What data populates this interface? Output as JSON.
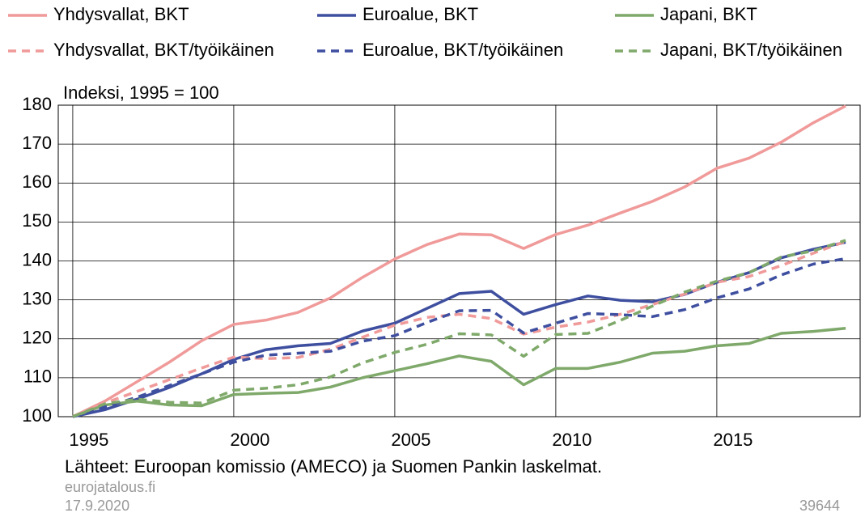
{
  "chart_data": {
    "type": "line",
    "y_label": "Indeksi, 1995 = 100",
    "source": "Lähteet: Euroopan komissio (AMECO) ja Suomen Pankin laskelmat.",
    "footer": [
      "eurojatalous.fi",
      "17.9.2020"
    ],
    "code": "39644",
    "x": [
      1995,
      1996,
      1997,
      1998,
      1999,
      2000,
      2001,
      2002,
      2003,
      2004,
      2005,
      2006,
      2007,
      2008,
      2009,
      2010,
      2011,
      2012,
      2013,
      2014,
      2015,
      2016,
      2017,
      2018,
      2019
    ],
    "xlim": [
      1994.55,
      2019.45
    ],
    "xticks": [
      1995,
      2000,
      2005,
      2010,
      2015
    ],
    "ylim": [
      100,
      180
    ],
    "yticks": [
      100,
      110,
      120,
      130,
      140,
      150,
      160,
      170,
      180
    ],
    "grid": true,
    "series": [
      {
        "name": "Yhdysvallat, BKT",
        "color": "#f09a9a",
        "linestyle": "solid",
        "values": [
          100,
          104,
          109,
          114,
          119.5,
          123.7,
          124.8,
          126.8,
          130.5,
          135.8,
          140.5,
          144.2,
          146.9,
          146.7,
          143.2,
          146.8,
          149.2,
          152.3,
          155.3,
          159,
          163.8,
          166.4,
          170.5,
          175.5,
          179.8
        ]
      },
      {
        "name": "Euroalue, BKT",
        "color": "#3f4fa0",
        "linestyle": "solid",
        "values": [
          100,
          101.8,
          104.5,
          107.5,
          111,
          114.7,
          117.2,
          118.2,
          118.8,
          122,
          124,
          127.8,
          131.6,
          132.2,
          126.3,
          128.8,
          131,
          129.9,
          129.5,
          131.4,
          134.5,
          137,
          140.8,
          143,
          144.8
        ]
      },
      {
        "name": "Japani, BKT",
        "color": "#7fa96a",
        "linestyle": "solid",
        "values": [
          100,
          103,
          104,
          103,
          102.8,
          105.7,
          106,
          106.2,
          107.6,
          110,
          111.8,
          113.6,
          115.6,
          114.2,
          108.2,
          112.4,
          112.4,
          114,
          116.3,
          116.8,
          118.2,
          118.8,
          121.4,
          121.9,
          122.7
        ]
      },
      {
        "name": "Yhdysvallat, BKT/työikäinen",
        "color": "#f09a9a",
        "linestyle": "dashed",
        "values": [
          100,
          103.5,
          106.5,
          109.5,
          112.5,
          115.3,
          114.9,
          115.2,
          117.3,
          120.4,
          123.5,
          125.5,
          126.3,
          125.2,
          121.2,
          123,
          124.3,
          126.3,
          128.8,
          131.5,
          134.5,
          136,
          138.8,
          142,
          145
        ]
      },
      {
        "name": "Euroalue, BKT/työikäinen",
        "color": "#3f4fa0",
        "linestyle": "dashed",
        "values": [
          100,
          102.5,
          105,
          108,
          111,
          114,
          115.8,
          116.3,
          116.8,
          119.4,
          120.8,
          124.2,
          127.2,
          127.3,
          121.5,
          124,
          126.5,
          126.2,
          125.7,
          127.5,
          130.5,
          132.8,
          136.4,
          139.2,
          140.6
        ]
      },
      {
        "name": "Japani, BKT/työikäinen",
        "color": "#7fa96a",
        "linestyle": "dashed",
        "values": [
          100,
          103.3,
          104.5,
          103.7,
          103.5,
          106.8,
          107.3,
          108.2,
          110.2,
          113.8,
          116.5,
          118.6,
          121.3,
          121,
          115.5,
          121.1,
          121.4,
          124.7,
          128.4,
          132,
          134.8,
          137,
          141,
          142.6,
          145.3
        ]
      }
    ]
  }
}
